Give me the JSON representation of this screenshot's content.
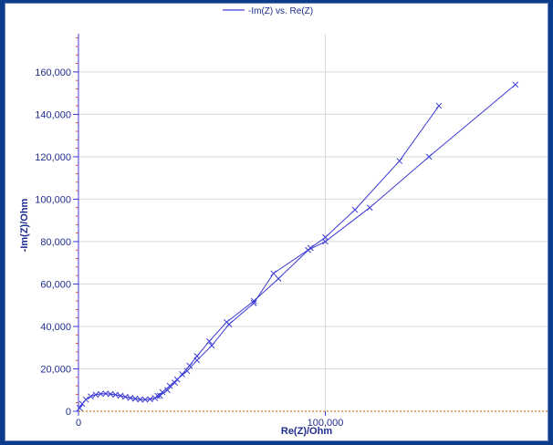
{
  "colors": {
    "background": "#0b3d8c",
    "series": "#3b3bd6",
    "axis": "#3b3bd6",
    "grid": "#d9d9d9",
    "tick_text": "#1f2d8f",
    "baseline": "#c9822a"
  },
  "chart_data": {
    "type": "scatter",
    "title": "",
    "legend": {
      "placement": "top-center",
      "label": "-Im(Z) vs. Re(Z)"
    },
    "xlabel": "Re(Z)/Ohm",
    "ylabel": "-Im(Z)/Ohm",
    "xlim": [
      0,
      190000
    ],
    "ylim": [
      0,
      178000
    ],
    "grid": true,
    "xticks": [
      0,
      100000
    ],
    "xtick_labels": [
      "0",
      "100,000"
    ],
    "yticks": [
      0,
      20000,
      40000,
      60000,
      80000,
      100000,
      120000,
      140000,
      160000
    ],
    "ytick_labels": [
      "0",
      "20,000",
      "40,000",
      "60,000",
      "80,000",
      "100,000",
      "120,000",
      "140,000",
      "160,000"
    ],
    "series": [
      {
        "name": "-Im(Z) vs. Re(Z)",
        "marker": "x",
        "x": [
          500,
          1500,
          3000,
          5000,
          7000,
          9000,
          11000,
          13000,
          15000,
          17000,
          19000,
          21000,
          23000,
          25000,
          27000,
          29000,
          31000,
          33000,
          36000,
          39000,
          42000,
          45000,
          48000,
          53000,
          60000,
          71000,
          81000,
          94000,
          100000,
          112000,
          130000,
          146000
        ],
        "y": [
          1500,
          3500,
          5500,
          7000,
          7800,
          8200,
          8300,
          8100,
          7800,
          7300,
          6800,
          6300,
          5900,
          5600,
          5500,
          5700,
          6200,
          7300,
          10000,
          13500,
          17500,
          21500,
          26000,
          33000,
          42000,
          52000,
          62500,
          77000,
          82000,
          95000,
          118000,
          144000
        ]
      },
      {
        "name": "",
        "marker": "x",
        "x": [
          32000,
          34000,
          37000,
          40000,
          44000,
          48000,
          54000,
          61000,
          71000,
          79000,
          93000,
          100000,
          118000,
          142000,
          177000
        ],
        "y": [
          7300,
          9000,
          12000,
          15000,
          19000,
          24000,
          31000,
          41000,
          51000,
          65000,
          76000,
          80000,
          96000,
          120000,
          154000
        ]
      }
    ]
  }
}
